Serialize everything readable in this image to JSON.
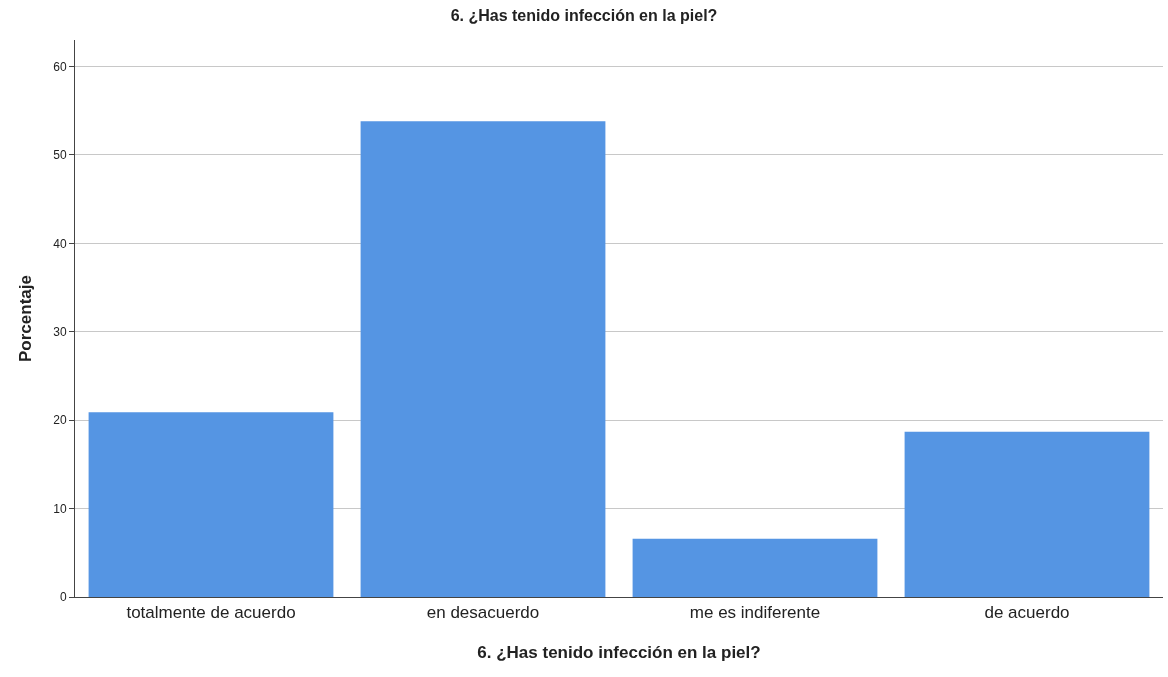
{
  "chart_data": {
    "type": "bar",
    "title": "6. ¿Has tenido infección en la piel?",
    "xlabel": "6. ¿Has tenido infección en la piel?",
    "ylabel": "Porcentaje",
    "categories": [
      "totalmente de acuerdo",
      "en desacuerdo",
      "me es indiferente",
      "de acuerdo"
    ],
    "values": [
      20.9,
      53.8,
      6.6,
      18.7
    ],
    "color": "#5595e3",
    "ylim": [
      0,
      63
    ],
    "yticks": [
      0,
      10,
      20,
      30,
      40,
      50,
      60
    ],
    "grid": "y",
    "legend": false
  }
}
